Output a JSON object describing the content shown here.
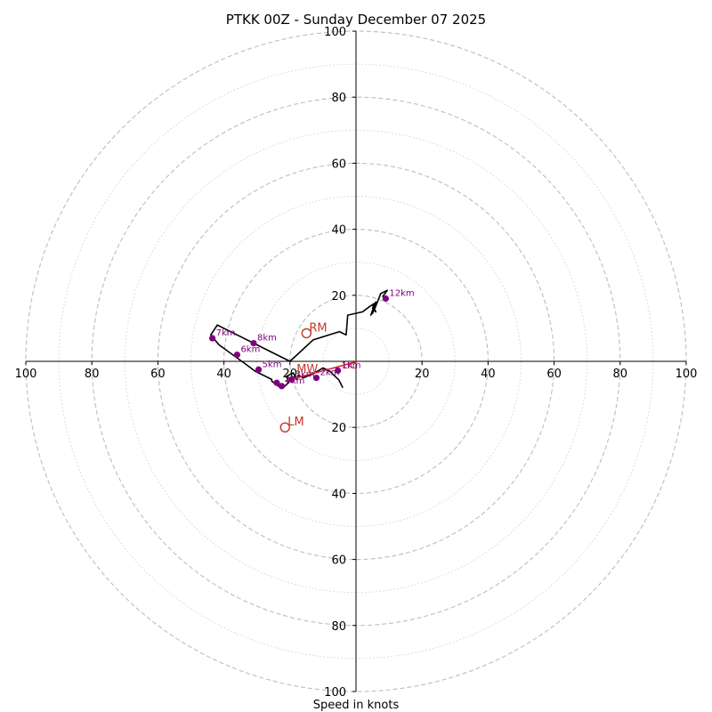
{
  "chart_data": {
    "type": "hodograph",
    "title": "PTKK 00Z - Sunday December 07 2025",
    "xlabel": "Speed in knots",
    "units": "knots",
    "range": [
      -100,
      100
    ],
    "ring_major": [
      20,
      40,
      60,
      80,
      100
    ],
    "ring_minor": [
      10,
      30,
      50,
      70,
      90
    ],
    "x_ticks": [
      "100",
      "80",
      "60",
      "40",
      "20",
      "20",
      "40",
      "60",
      "80",
      "100"
    ],
    "y_ticks": [
      "100",
      "80",
      "60",
      "40",
      "20",
      "20",
      "40",
      "60",
      "80",
      "100"
    ],
    "profile": [
      [
        -4,
        -8
      ],
      [
        -5.2,
        -5.6
      ],
      [
        -8,
        -3
      ],
      [
        -10,
        -2
      ],
      [
        -13,
        -3.8
      ],
      [
        -16,
        -5
      ],
      [
        -17.5,
        -4.2
      ],
      [
        -18,
        -5.5
      ],
      [
        -19,
        -3.5
      ],
      [
        -21,
        -4.5
      ],
      [
        -20.5,
        -6.5
      ],
      [
        -21.5,
        -7.5
      ],
      [
        -23.5,
        -7.5
      ],
      [
        -25.5,
        -6
      ],
      [
        -25.5,
        -5.5
      ],
      [
        -27.5,
        -4.5
      ],
      [
        -29.5,
        -3.5
      ],
      [
        -30.8,
        -2.8
      ],
      [
        -32.5,
        -1.5
      ],
      [
        -41.5,
        5
      ],
      [
        -44,
        8
      ],
      [
        -42,
        11
      ],
      [
        -20,
        0
      ],
      [
        -13,
        6.5
      ],
      [
        -5,
        9
      ],
      [
        -3,
        8
      ],
      [
        -2.5,
        14
      ],
      [
        2,
        15
      ],
      [
        4,
        16.5
      ],
      [
        5.5,
        17.5
      ],
      [
        5,
        16
      ],
      [
        6,
        15
      ],
      [
        5.5,
        16
      ],
      [
        5,
        14.5
      ],
      [
        5,
        15.5
      ],
      [
        4.5,
        14
      ],
      [
        6,
        18
      ],
      [
        5.5,
        16
      ],
      [
        5,
        15
      ],
      [
        5.5,
        15.5
      ],
      [
        7.5,
        20.5
      ],
      [
        9.5,
        21.5
      ],
      [
        8,
        19.5
      ]
    ],
    "km_points": [
      {
        "label": "1km",
        "u": -5.5,
        "v": -2.8
      },
      {
        "label": "2km",
        "u": -12,
        "v": -5
      },
      {
        "label": "3km",
        "u": -19.5,
        "v": -5.5
      },
      {
        "label": "4km",
        "u": -22.5,
        "v": -7.5
      },
      {
        "label": "",
        "u": -24,
        "v": -6.5
      },
      {
        "label": "5km",
        "u": -29.5,
        "v": -2.5
      },
      {
        "label": "6km",
        "u": -36,
        "v": 2
      },
      {
        "label": "7km",
        "u": -43.5,
        "v": 7
      },
      {
        "label": "8km",
        "u": -31,
        "v": 5.5
      },
      {
        "label": "12km",
        "u": 9,
        "v": 19
      }
    ],
    "storm_motions": [
      {
        "label": "RM",
        "u": -15,
        "v": 8.5
      },
      {
        "label": "LM",
        "u": -21.5,
        "v": -20
      },
      {
        "label": "MW",
        "u": -18,
        "v": -4
      }
    ],
    "shear_vector": {
      "label": "LIC",
      "from": [
        -21.5,
        -6
      ],
      "to": [
        0.5,
        0
      ]
    }
  }
}
